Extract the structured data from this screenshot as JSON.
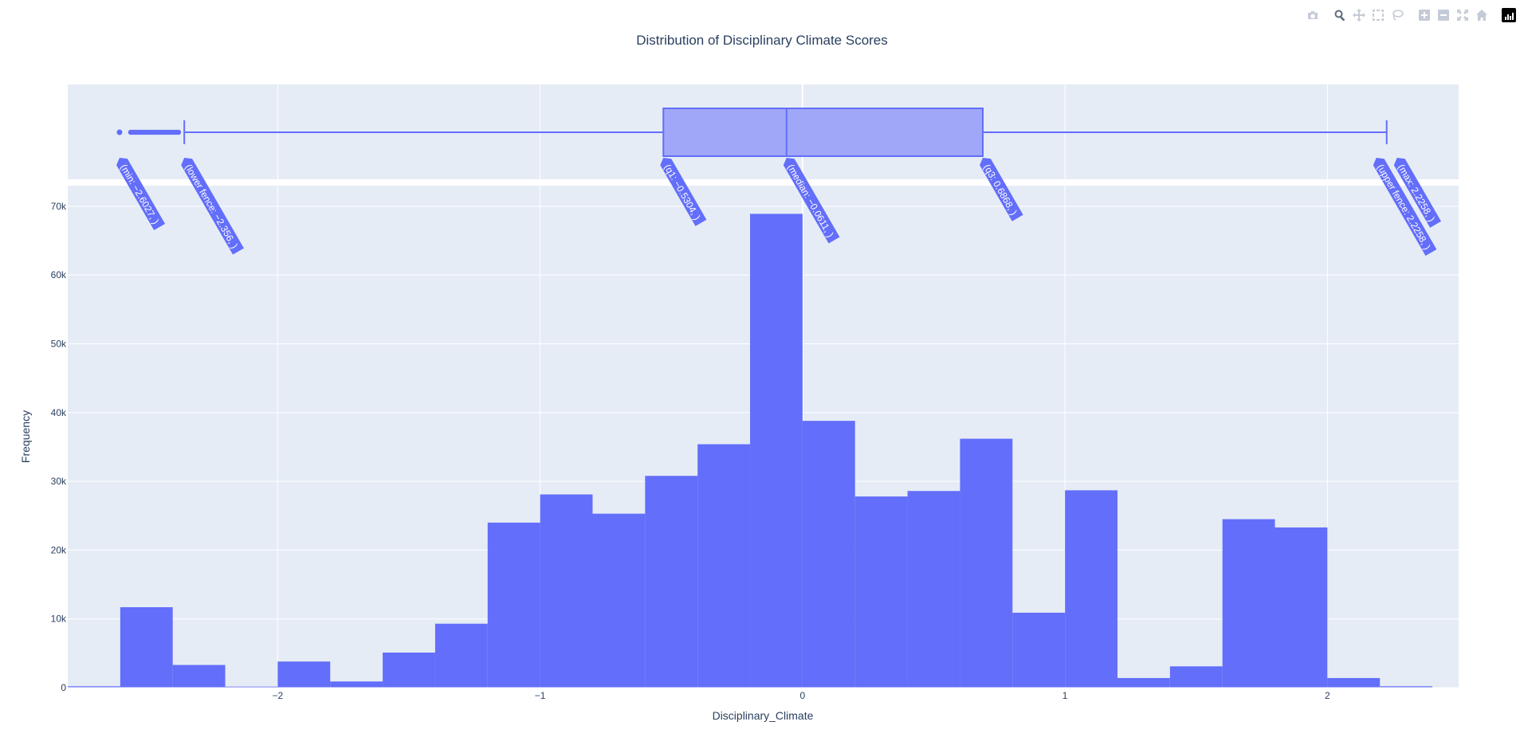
{
  "chart_data": {
    "type": "histogram",
    "title": "Distribution of Disciplinary Climate Scores",
    "xlabel": "Disciplinary_Climate",
    "ylabel": "Frequency",
    "xlim": [
      -2.8,
      2.5
    ],
    "ylim": [
      0,
      73000
    ],
    "grid": true,
    "bin_width": 0.2,
    "x_ticks": [
      -2,
      -1,
      0,
      1,
      2
    ],
    "x_tick_labels": [
      "−2",
      "−1",
      "0",
      "1",
      "2"
    ],
    "y_ticks": [
      0,
      10000,
      20000,
      30000,
      40000,
      50000,
      60000,
      70000
    ],
    "y_tick_labels": [
      "0",
      "10k",
      "20k",
      "30k",
      "40k",
      "50k",
      "60k",
      "70k"
    ],
    "bins": [
      {
        "x0": -2.8,
        "x1": -2.6,
        "count": 200
      },
      {
        "x0": -2.6,
        "x1": -2.4,
        "count": 11700
      },
      {
        "x0": -2.4,
        "x1": -2.2,
        "count": 3300
      },
      {
        "x0": -2.2,
        "x1": -2.0,
        "count": 150
      },
      {
        "x0": -2.0,
        "x1": -1.8,
        "count": 3800
      },
      {
        "x0": -1.8,
        "x1": -1.6,
        "count": 900
      },
      {
        "x0": -1.6,
        "x1": -1.4,
        "count": 5100
      },
      {
        "x0": -1.4,
        "x1": -1.2,
        "count": 9300
      },
      {
        "x0": -1.2,
        "x1": -1.0,
        "count": 24000
      },
      {
        "x0": -1.0,
        "x1": -0.8,
        "count": 28100
      },
      {
        "x0": -0.8,
        "x1": -0.6,
        "count": 25300
      },
      {
        "x0": -0.6,
        "x1": -0.4,
        "count": 30800
      },
      {
        "x0": -0.4,
        "x1": -0.2,
        "count": 35400
      },
      {
        "x0": -0.2,
        "x1": 0.0,
        "count": 68900
      },
      {
        "x0": 0.0,
        "x1": 0.2,
        "count": 38800
      },
      {
        "x0": 0.2,
        "x1": 0.4,
        "count": 27800
      },
      {
        "x0": 0.4,
        "x1": 0.6,
        "count": 28600
      },
      {
        "x0": 0.6,
        "x1": 0.8,
        "count": 36200
      },
      {
        "x0": 0.8,
        "x1": 1.0,
        "count": 10900
      },
      {
        "x0": 1.0,
        "x1": 1.2,
        "count": 28700
      },
      {
        "x0": 1.2,
        "x1": 1.4,
        "count": 1400
      },
      {
        "x0": 1.4,
        "x1": 1.6,
        "count": 3100
      },
      {
        "x0": 1.6,
        "x1": 1.8,
        "count": 24500
      },
      {
        "x0": 1.8,
        "x1": 2.0,
        "count": 23300
      },
      {
        "x0": 2.0,
        "x1": 2.2,
        "count": 1400
      },
      {
        "x0": 2.2,
        "x1": 2.4,
        "count": 200
      }
    ],
    "boxplot": {
      "min": -2.6027,
      "lower_fence": -2.356,
      "q1": -0.5304,
      "median": -0.0611,
      "q3": 0.6868,
      "upper_fence": 2.2258,
      "max": 2.2258,
      "outlier_range": [
        -2.6027,
        -2.37
      ]
    },
    "annotations": [
      {
        "key": "min",
        "text": "(min: −2.6027, )"
      },
      {
        "key": "lower_fence",
        "text": "(lower fence: −2.356, )"
      },
      {
        "key": "q1",
        "text": "(q1: −0.5304, )"
      },
      {
        "key": "median",
        "text": "(median: −0.0611, )"
      },
      {
        "key": "q3",
        "text": "(q3: 0.6868, )"
      },
      {
        "key": "max",
        "text": "(max: 2.2258, )"
      },
      {
        "key": "upper_fence",
        "text": "(upper fence: 2.2258, )"
      }
    ],
    "colors": {
      "bar": "#636efa",
      "box_fill": "#a1a7f8",
      "plot_bg": "#e5ecf6",
      "grid": "#ffffff",
      "label_bg": "#636efa",
      "label_text": "#ffffff",
      "text": "#2a3f5f"
    }
  },
  "modebar": {
    "buttons": [
      {
        "name": "camera-icon",
        "active": false
      },
      {
        "name": "zoom-icon",
        "active": true
      },
      {
        "name": "pan-icon",
        "active": false
      },
      {
        "name": "box-select-icon",
        "active": false
      },
      {
        "name": "lasso-select-icon",
        "active": false
      },
      {
        "name": "zoom-in-icon",
        "active": false
      },
      {
        "name": "zoom-out-icon",
        "active": false
      },
      {
        "name": "autoscale-icon",
        "active": false
      },
      {
        "name": "reset-axes-icon",
        "active": false
      }
    ],
    "logo": "plotly-logo-icon"
  }
}
